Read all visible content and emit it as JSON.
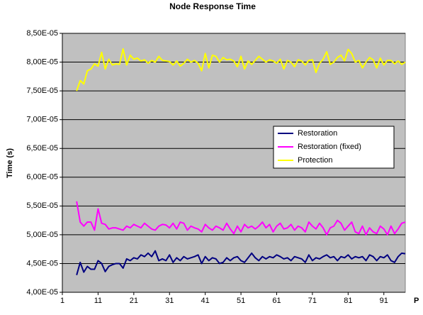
{
  "chart_data": {
    "type": "line",
    "title": "Node Response Time",
    "y_label": "Time (s)",
    "x_label": "P",
    "x": [
      5,
      6,
      7,
      8,
      9,
      10,
      11,
      12,
      13,
      14,
      15,
      16,
      17,
      18,
      19,
      20,
      21,
      22,
      23,
      24,
      25,
      26,
      27,
      28,
      29,
      30,
      31,
      32,
      33,
      34,
      35,
      36,
      37,
      38,
      39,
      40,
      41,
      42,
      43,
      44,
      45,
      46,
      47,
      48,
      49,
      50,
      51,
      52,
      53,
      54,
      55,
      56,
      57,
      58,
      59,
      60,
      61,
      62,
      63,
      64,
      65,
      66,
      67,
      68,
      69,
      70,
      71,
      72,
      73,
      74,
      75,
      76,
      77,
      78,
      79,
      80,
      81,
      82,
      83,
      84,
      85,
      86,
      87,
      88,
      89,
      90,
      91,
      92,
      93,
      94,
      95,
      96,
      97
    ],
    "xlim": [
      1,
      97
    ],
    "xticks": [
      1,
      11,
      21,
      31,
      41,
      51,
      61,
      71,
      81,
      91
    ],
    "ylim": [
      4e-05,
      8.5e-05
    ],
    "yticks": [
      {
        "value": 4e-05,
        "label": "4,00E-05"
      },
      {
        "value": 4.5e-05,
        "label": "4,50E-05"
      },
      {
        "value": 5e-05,
        "label": "5,00E-05"
      },
      {
        "value": 5.5e-05,
        "label": "5,50E-05"
      },
      {
        "value": 6e-05,
        "label": "6,00E-05"
      },
      {
        "value": 6.5e-05,
        "label": "6,50E-05"
      },
      {
        "value": 7e-05,
        "label": "7,00E-05"
      },
      {
        "value": 7.5e-05,
        "label": "7,50E-05"
      },
      {
        "value": 8e-05,
        "label": "8,00E-05"
      },
      {
        "value": 8.5e-05,
        "label": "8,50E-05"
      }
    ],
    "grid": true,
    "plot_background": "#c0c0c0",
    "series": [
      {
        "name": "Restoration",
        "color": "#000080",
        "values": [
          4.3e-05,
          4.52e-05,
          4.35e-05,
          4.45e-05,
          4.4e-05,
          4.4e-05,
          4.55e-05,
          4.5e-05,
          4.36e-05,
          4.45e-05,
          4.48e-05,
          4.5e-05,
          4.5e-05,
          4.42e-05,
          4.58e-05,
          4.55e-05,
          4.6e-05,
          4.58e-05,
          4.65e-05,
          4.62e-05,
          4.68e-05,
          4.62e-05,
          4.72e-05,
          4.55e-05,
          4.58e-05,
          4.55e-05,
          4.65e-05,
          4.52e-05,
          4.6e-05,
          4.55e-05,
          4.62e-05,
          4.58e-05,
          4.6e-05,
          4.62e-05,
          4.65e-05,
          4.5e-05,
          4.62e-05,
          4.55e-05,
          4.6e-05,
          4.58e-05,
          4.5e-05,
          4.52e-05,
          4.6e-05,
          4.55e-05,
          4.6e-05,
          4.62e-05,
          4.55e-05,
          4.52e-05,
          4.6e-05,
          4.68e-05,
          4.6e-05,
          4.55e-05,
          4.62e-05,
          4.58e-05,
          4.62e-05,
          4.6e-05,
          4.65e-05,
          4.62e-05,
          4.58e-05,
          4.6e-05,
          4.55e-05,
          4.62e-05,
          4.6e-05,
          4.58e-05,
          4.52e-05,
          4.65e-05,
          4.55e-05,
          4.6e-05,
          4.58e-05,
          4.62e-05,
          4.65e-05,
          4.6e-05,
          4.62e-05,
          4.55e-05,
          4.62e-05,
          4.6e-05,
          4.65e-05,
          4.58e-05,
          4.62e-05,
          4.6e-05,
          4.62e-05,
          4.55e-05,
          4.65e-05,
          4.62e-05,
          4.55e-05,
          4.62e-05,
          4.6e-05,
          4.65e-05,
          4.55e-05,
          4.52e-05,
          4.62e-05,
          4.68e-05,
          4.67e-05
        ]
      },
      {
        "name": "Restoration (fixed)",
        "color": "#ff00ff",
        "values": [
          5.58e-05,
          5.22e-05,
          5.15e-05,
          5.22e-05,
          5.22e-05,
          5.08e-05,
          5.45e-05,
          5.2e-05,
          5.18e-05,
          5.1e-05,
          5.12e-05,
          5.12e-05,
          5.1e-05,
          5.08e-05,
          5.15e-05,
          5.12e-05,
          5.18e-05,
          5.15e-05,
          5.12e-05,
          5.2e-05,
          5.15e-05,
          5.1e-05,
          5.08e-05,
          5.15e-05,
          5.18e-05,
          5.17e-05,
          5.12e-05,
          5.2e-05,
          5.1e-05,
          5.22e-05,
          5.2e-05,
          5.08e-05,
          5.15e-05,
          5.12e-05,
          5.1e-05,
          5.05e-05,
          5.18e-05,
          5.12e-05,
          5.08e-05,
          5.15e-05,
          5.12e-05,
          5.08e-05,
          5.2e-05,
          5.1e-05,
          5.02e-05,
          5.15e-05,
          5.05e-05,
          5.18e-05,
          5.12e-05,
          5.15e-05,
          5.1e-05,
          5.15e-05,
          5.22e-05,
          5.12e-05,
          5.18e-05,
          5.05e-05,
          5.15e-05,
          5.2e-05,
          5.1e-05,
          5.12e-05,
          5.18e-05,
          5.08e-05,
          5.15e-05,
          5.12e-05,
          5.05e-05,
          5.22e-05,
          5.15e-05,
          5.1e-05,
          5.2e-05,
          5.12e-05,
          5e-05,
          5.12e-05,
          5.15e-05,
          5.25e-05,
          5.2e-05,
          5.08e-05,
          5.15e-05,
          5.22e-05,
          5.05e-05,
          5.02e-05,
          5.15e-05,
          5e-05,
          5.12e-05,
          5.05e-05,
          5.02e-05,
          5.15e-05,
          5.1e-05,
          5e-05,
          5.15e-05,
          5.02e-05,
          5.1e-05,
          5.2e-05,
          5.22e-05
        ]
      },
      {
        "name": "Protection",
        "color": "#ffff00",
        "values": [
          7.5e-05,
          7.68e-05,
          7.62e-05,
          7.85e-05,
          7.88e-05,
          7.97e-05,
          7.93e-05,
          8.17e-05,
          7.88e-05,
          8.05e-05,
          7.95e-05,
          7.97e-05,
          7.96e-05,
          8.23e-05,
          7.95e-05,
          8.12e-05,
          8.05e-05,
          8.07e-05,
          8.02e-05,
          8.04e-05,
          7.98e-05,
          8.03e-05,
          8e-05,
          8.1e-05,
          8.03e-05,
          8.02e-05,
          8.01e-05,
          7.95e-05,
          8.02e-05,
          7.93e-05,
          7.98e-05,
          8.05e-05,
          8e-05,
          8.03e-05,
          7.98e-05,
          7.85e-05,
          8.15e-05,
          7.9e-05,
          8.12e-05,
          8.1e-05,
          8e-05,
          8.08e-05,
          8.04e-05,
          8.05e-05,
          8.02e-05,
          7.92e-05,
          8.1e-05,
          7.88e-05,
          8.02e-05,
          7.96e-05,
          8.03e-05,
          8.1e-05,
          8.05e-05,
          8e-05,
          8.04e-05,
          8.02e-05,
          7.98e-05,
          8.05e-05,
          7.88e-05,
          8.03e-05,
          8e-05,
          7.92e-05,
          8.04e-05,
          8.02e-05,
          7.95e-05,
          8.03e-05,
          8.04e-05,
          7.82e-05,
          7.98e-05,
          8.05e-05,
          8.18e-05,
          7.96e-05,
          8e-05,
          8.08e-05,
          8.12e-05,
          8.02e-05,
          8.22e-05,
          8.15e-05,
          8e-05,
          8.03e-05,
          7.9e-05,
          8e-05,
          8.08e-05,
          8.04e-05,
          7.9e-05,
          8.07e-05,
          7.95e-05,
          8.03e-05,
          8.03e-05,
          7.97e-05,
          8.02e-05,
          7.96e-05,
          8e-05
        ]
      }
    ]
  }
}
